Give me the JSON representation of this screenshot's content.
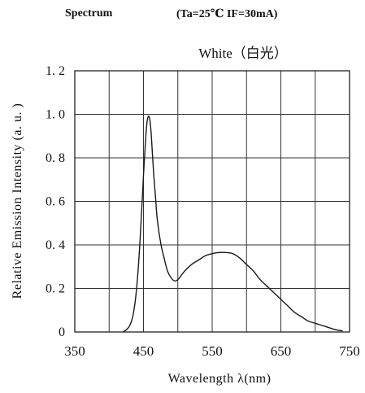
{
  "header": {
    "label": "Spectrum",
    "conditions": "(Ta=25℃ IF=30mA)"
  },
  "chart_data": {
    "type": "line",
    "title": "White（白光）",
    "xlabel": "Wavelength λ(nm)",
    "ylabel": "Relative Emission Intensity (a. u. )",
    "xlim": [
      350,
      750
    ],
    "ylim": [
      0,
      1.2
    ],
    "x_ticks": [
      350,
      400,
      450,
      500,
      550,
      600,
      650,
      700,
      750
    ],
    "x_tick_labels": [
      "350",
      "450",
      "550",
      "650",
      "750"
    ],
    "x_tick_label_values": [
      350,
      450,
      550,
      650,
      750
    ],
    "y_ticks": [
      0,
      0.2,
      0.4,
      0.6,
      0.8,
      1.0,
      1.2
    ],
    "y_tick_labels": [
      "0",
      "0. 2",
      "0. 4",
      "0. 6",
      "0. 8",
      "1. 0",
      "1. 2"
    ],
    "grid": true,
    "series": [
      {
        "color": "#1a1a1a",
        "x": [
          420,
          425,
          430,
          435,
          440,
          445,
          450,
          453,
          455,
          457,
          459,
          461,
          463,
          465,
          468,
          470,
          475,
          480,
          485,
          490,
          495,
          500,
          505,
          510,
          520,
          530,
          540,
          550,
          560,
          570,
          580,
          590,
          600,
          610,
          620,
          630,
          640,
          650,
          660,
          670,
          680,
          690,
          700,
          710,
          720,
          730,
          740
        ],
        "y": [
          0.0,
          0.01,
          0.03,
          0.08,
          0.2,
          0.42,
          0.72,
          0.88,
          0.96,
          0.99,
          0.98,
          0.92,
          0.82,
          0.72,
          0.6,
          0.52,
          0.41,
          0.34,
          0.28,
          0.25,
          0.235,
          0.24,
          0.26,
          0.28,
          0.31,
          0.33,
          0.35,
          0.36,
          0.365,
          0.365,
          0.36,
          0.34,
          0.31,
          0.28,
          0.24,
          0.21,
          0.18,
          0.15,
          0.12,
          0.09,
          0.07,
          0.05,
          0.04,
          0.03,
          0.02,
          0.01,
          0.005
        ]
      }
    ]
  }
}
